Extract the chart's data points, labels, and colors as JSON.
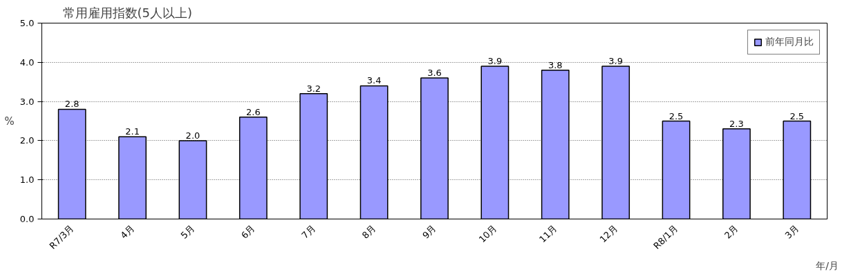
{
  "chart_data": {
    "type": "bar",
    "title": "常用雇用指数(5人以上)",
    "ylabel": "%",
    "xlabel": "年/月",
    "categories": [
      "R7/3月",
      "4月",
      "5月",
      "6月",
      "7月",
      "8月",
      "9月",
      "10月",
      "11月",
      "12月",
      "R8/1月",
      "2月",
      "3月"
    ],
    "series": [
      {
        "name": "前年同月比",
        "color": "#9999ff",
        "values": [
          2.8,
          2.1,
          2.0,
          2.6,
          3.2,
          3.4,
          3.6,
          3.9,
          3.8,
          3.9,
          2.5,
          2.3,
          2.5
        ],
        "value_labels": [
          "2.8",
          "2.1",
          "2.0",
          "2.6",
          "3.2",
          "3.4",
          "3.6",
          "3.9",
          "3.8",
          "3.9",
          "2.5",
          "2.3",
          "2.5"
        ]
      }
    ],
    "ylim": [
      0,
      5
    ],
    "yticks": [
      {
        "value": 0,
        "label": "0.0"
      },
      {
        "value": 1,
        "label": "1.0"
      },
      {
        "value": 2,
        "label": "2.0"
      },
      {
        "value": 3,
        "label": "3.0"
      },
      {
        "value": 4,
        "label": "4.0"
      },
      {
        "value": 5,
        "label": "5.0"
      }
    ],
    "grid": "y",
    "legend": "top right"
  }
}
